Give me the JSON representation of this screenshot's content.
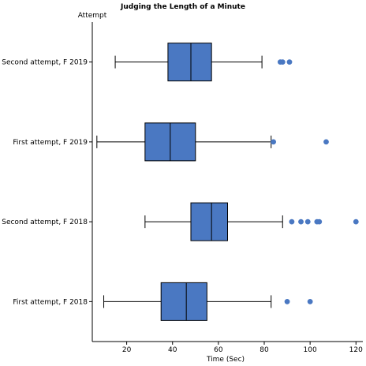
{
  "chart_data": {
    "type": "boxplot",
    "orientation": "horizontal",
    "title": "Judging the Length of a Minute",
    "xlabel": "Time (Sec)",
    "ylabel": "Attempt",
    "xlim": [
      5,
      123
    ],
    "xticks": [
      20,
      40,
      60,
      80,
      100,
      120
    ],
    "grid": false,
    "color": "#4a78c2",
    "categories": [
      "Second attempt, F 2019",
      "First attempt, F 2019",
      "Second attempt, F 2018",
      "First attempt, F 2018"
    ],
    "boxes": [
      {
        "category": "Second attempt, F 2019",
        "whisker_low": 15,
        "q1": 38,
        "median": 48,
        "q3": 57,
        "whisker_high": 79,
        "outliers": [
          87,
          88,
          91
        ]
      },
      {
        "category": "First attempt, F 2019",
        "whisker_low": 7,
        "q1": 28,
        "median": 39,
        "q3": 50,
        "whisker_high": 83,
        "outliers": [
          84,
          107
        ]
      },
      {
        "category": "Second attempt, F 2018",
        "whisker_low": 28,
        "q1": 48,
        "median": 57,
        "q3": 64,
        "whisker_high": 88,
        "outliers": [
          92,
          96,
          99,
          103,
          104,
          120
        ]
      },
      {
        "category": "First attempt, F 2018",
        "whisker_low": 10,
        "q1": 35,
        "median": 46,
        "q3": 55,
        "whisker_high": 83,
        "outliers": [
          90,
          100
        ]
      }
    ]
  }
}
